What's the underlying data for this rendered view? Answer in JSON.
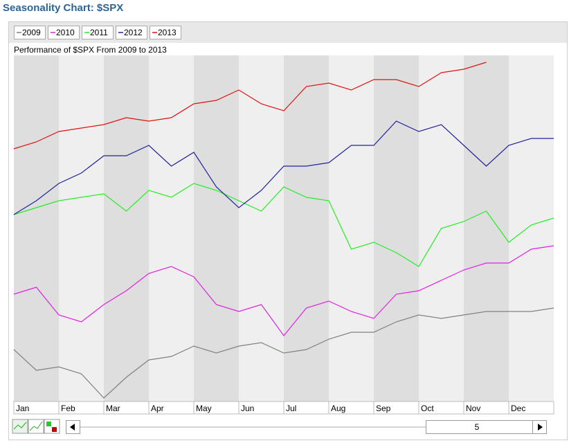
{
  "chart_data": {
    "type": "line",
    "title": "Seasonality Chart: $SPX",
    "subtitle": "Performance of $SPX From 2009 to 2013",
    "x": [
      0,
      0.5,
      1,
      1.5,
      2,
      2.5,
      3,
      3.5,
      4,
      4.5,
      5,
      5.5,
      6,
      6.5,
      7,
      7.5,
      8,
      8.5,
      9,
      9.5,
      10,
      10.5,
      11,
      11.5,
      12
    ],
    "xlim": [
      0,
      12
    ],
    "xticks": [
      {
        "value": 0,
        "label": "Jan"
      },
      {
        "value": 1,
        "label": "Feb"
      },
      {
        "value": 2,
        "label": "Mar"
      },
      {
        "value": 3,
        "label": "Apr"
      },
      {
        "value": 4,
        "label": "May"
      },
      {
        "value": 5,
        "label": "Jun"
      },
      {
        "value": 6,
        "label": "Jul"
      },
      {
        "value": 7,
        "label": "Aug"
      },
      {
        "value": 8,
        "label": "Sep"
      },
      {
        "value": 9,
        "label": "Oct"
      },
      {
        "value": 10,
        "label": "Nov"
      },
      {
        "value": 11,
        "label": "Dec"
      }
    ],
    "ylim": [
      0,
      100
    ],
    "series": [
      {
        "name": "2009",
        "color": "#808080",
        "values": [
          15,
          9,
          10,
          8,
          1,
          7,
          12,
          13,
          16,
          14,
          16,
          17,
          14,
          15,
          18,
          20,
          20,
          23,
          25,
          24,
          25,
          26,
          26,
          26,
          27
        ]
      },
      {
        "name": "2010",
        "color": "#e020e0",
        "values": [
          31,
          33,
          25,
          23,
          28,
          32,
          37,
          39,
          36,
          28,
          26,
          28,
          19,
          27,
          29,
          26,
          24,
          31,
          32,
          35,
          38,
          40,
          40,
          44,
          45
        ]
      },
      {
        "name": "2011",
        "color": "#22ee22",
        "values": [
          54,
          56,
          58,
          59,
          60,
          55,
          61,
          59,
          63,
          61,
          58,
          55,
          62,
          59,
          58,
          44,
          46,
          43,
          39,
          50,
          52,
          55,
          46,
          51,
          53
        ]
      },
      {
        "name": "2012",
        "color": "#22229a",
        "values": [
          54,
          58,
          63,
          66,
          71,
          71,
          74,
          68,
          72,
          62,
          56,
          61,
          68,
          68,
          69,
          74,
          74,
          81,
          78,
          80,
          74,
          68,
          74,
          76,
          76
        ]
      },
      {
        "name": "2013",
        "color": "#e01010",
        "values": [
          73,
          75,
          78,
          79,
          80,
          82,
          81,
          82,
          86,
          87,
          90,
          86,
          84,
          91,
          92,
          90,
          93,
          93,
          91,
          95,
          96,
          98,
          null,
          null,
          null
        ]
      }
    ]
  },
  "controls": {
    "period": 5
  }
}
